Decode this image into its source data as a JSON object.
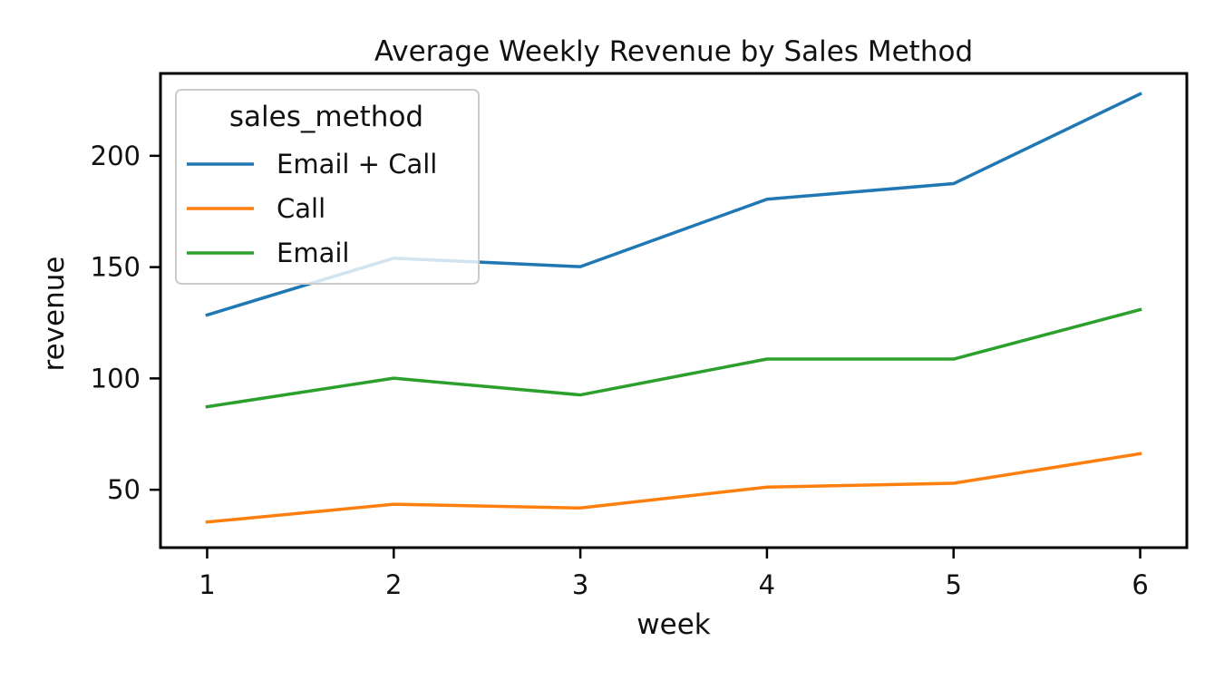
{
  "chart_data": {
    "type": "line",
    "title": "Average Weekly Revenue by Sales Method",
    "xlabel": "week",
    "ylabel": "revenue",
    "x": [
      1,
      2,
      3,
      4,
      5,
      6
    ],
    "xticks": [
      "1",
      "2",
      "3",
      "4",
      "5",
      "6"
    ],
    "yticks": [
      50,
      100,
      150,
      200
    ],
    "xlim": [
      0.75,
      6.25
    ],
    "ylim": [
      24,
      237
    ],
    "grid": false,
    "legend": {
      "title": "sales_method",
      "placement": "top-left"
    },
    "series": [
      {
        "name": "Email + Call",
        "color": "#1f77b4",
        "values": [
          128.5,
          154.0,
          150.2,
          180.5,
          187.5,
          227.8
        ]
      },
      {
        "name": "Call",
        "color": "#ff7f0e",
        "values": [
          35.5,
          43.5,
          41.8,
          51.2,
          52.9,
          66.2
        ]
      },
      {
        "name": "Email",
        "color": "#2ca02c",
        "values": [
          87.3,
          100.1,
          92.6,
          108.7,
          108.7,
          130.9
        ]
      }
    ]
  }
}
